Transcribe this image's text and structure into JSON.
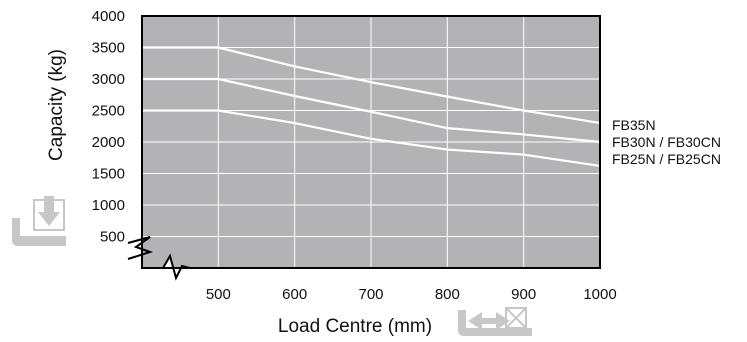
{
  "chart_data": {
    "type": "line",
    "title": "",
    "xlabel": "Load Centre (mm)",
    "ylabel": "Capacity (kg)",
    "x_ticks": [
      500,
      600,
      700,
      800,
      900,
      1000
    ],
    "y_ticks": [
      500,
      1000,
      1500,
      2000,
      2500,
      3000,
      3500,
      4000
    ],
    "xlim": [
      400,
      1000
    ],
    "ylim": [
      0,
      4000
    ],
    "grid": true,
    "axis_break": true,
    "series": [
      {
        "name": "FB35N",
        "x": [
          400,
          500,
          600,
          700,
          800,
          900,
          1000
        ],
        "y": [
          3500,
          3500,
          3200,
          2950,
          2720,
          2500,
          2300
        ]
      },
      {
        "name": "FB30N / FB30CN",
        "x": [
          400,
          500,
          600,
          700,
          800,
          900,
          1000
        ],
        "y": [
          3000,
          3000,
          2730,
          2480,
          2220,
          2120,
          2000
        ]
      },
      {
        "name": "FB25N / FB25CN",
        "x": [
          400,
          500,
          600,
          700,
          800,
          900,
          1000
        ],
        "y": [
          2500,
          2500,
          2300,
          2050,
          1880,
          1800,
          1620
        ]
      }
    ],
    "colors": {
      "plot_bg": "#b3b3b5",
      "grid": "#ffffff",
      "line": "#ffffff",
      "icon": "#c7c7c9"
    }
  }
}
